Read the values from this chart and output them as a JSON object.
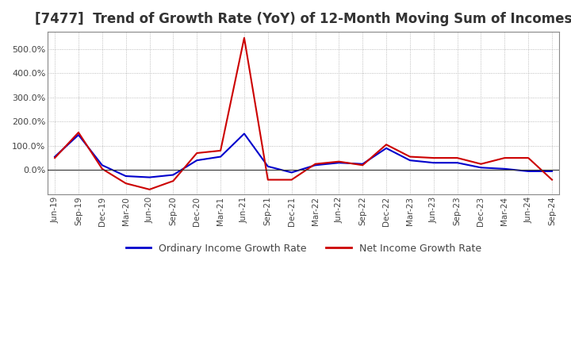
{
  "title": "[7477]  Trend of Growth Rate (YoY) of 12-Month Moving Sum of Incomes",
  "title_fontsize": 12,
  "legend_labels": [
    "Ordinary Income Growth Rate",
    "Net Income Growth Rate"
  ],
  "line_colors": [
    "#0000cc",
    "#cc0000"
  ],
  "background_color": "#ffffff",
  "plot_bg_color": "#ffffff",
  "grid_color": "#aaaaaa",
  "dates": [
    "Jun-19",
    "Sep-19",
    "Dec-19",
    "Mar-20",
    "Jun-20",
    "Sep-20",
    "Dec-20",
    "Mar-21",
    "Jun-21",
    "Sep-21",
    "Dec-21",
    "Mar-22",
    "Jun-22",
    "Sep-22",
    "Dec-22",
    "Mar-23",
    "Jun-23",
    "Sep-23",
    "Dec-23",
    "Mar-24",
    "Jun-24",
    "Sep-24"
  ],
  "ordinary_income": [
    55,
    145,
    20,
    -25,
    -30,
    -20,
    40,
    55,
    150,
    15,
    -10,
    20,
    30,
    25,
    90,
    40,
    30,
    30,
    10,
    5,
    -5,
    -5
  ],
  "net_income": [
    50,
    155,
    5,
    -55,
    -80,
    -45,
    70,
    80,
    545,
    -40,
    -40,
    25,
    35,
    20,
    105,
    55,
    50,
    50,
    25,
    50,
    50,
    -40
  ],
  "ylim": [
    -100,
    570
  ],
  "yticks": [
    0,
    100,
    200,
    300,
    400,
    500
  ],
  "ytick_labels": [
    "0.0%",
    "100.0%",
    "200.0%",
    "300.0%",
    "400.0%",
    "500.0%"
  ]
}
